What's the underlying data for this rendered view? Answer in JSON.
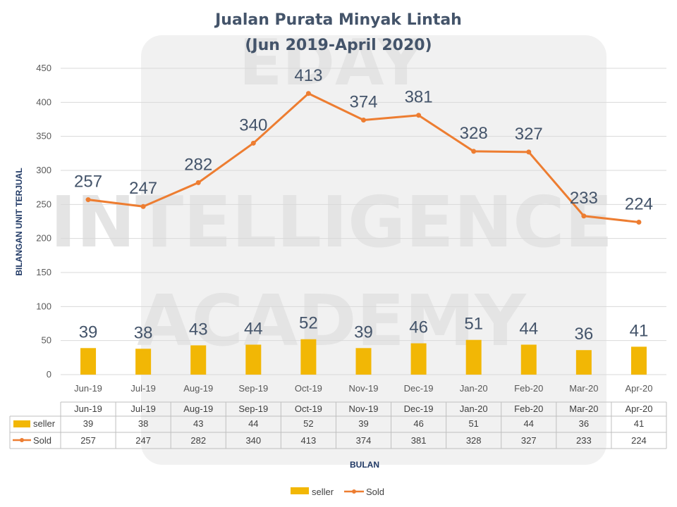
{
  "watermark": {
    "line1": "EDAY",
    "line2": "INTELLIGENCE",
    "line3": "ACADEMY"
  },
  "colors": {
    "bar": "#f2b705",
    "bar_dark": "#d19e00",
    "line": "#ed7d31",
    "grid": "#d9d9d9",
    "label": "#44546a"
  },
  "chart_data": {
    "type": "bar+line",
    "title": "Jualan Purata Minyak Lintah",
    "subtitle": "(Jun 2019-April 2020)",
    "xlabel": "BULAN",
    "ylabel": "BILANGAN UNIT TERJUAL",
    "ylim": [
      0,
      450
    ],
    "yticks": [
      0,
      50,
      100,
      150,
      200,
      250,
      300,
      350,
      400,
      450
    ],
    "grid": true,
    "legend_position": "bottom",
    "categories": [
      "Jun-19",
      "Jul-19",
      "Aug-19",
      "Sep-19",
      "Oct-19",
      "Nov-19",
      "Dec-19",
      "Jan-20",
      "Feb-20",
      "Mar-20",
      "Apr-20"
    ],
    "series": [
      {
        "name": "seller",
        "type": "bar",
        "values": [
          39,
          38,
          43,
          44,
          52,
          39,
          46,
          51,
          44,
          36,
          41
        ]
      },
      {
        "name": "Sold",
        "type": "line",
        "values": [
          257,
          247,
          282,
          340,
          413,
          374,
          381,
          328,
          327,
          233,
          224
        ]
      }
    ],
    "data_table": true
  }
}
